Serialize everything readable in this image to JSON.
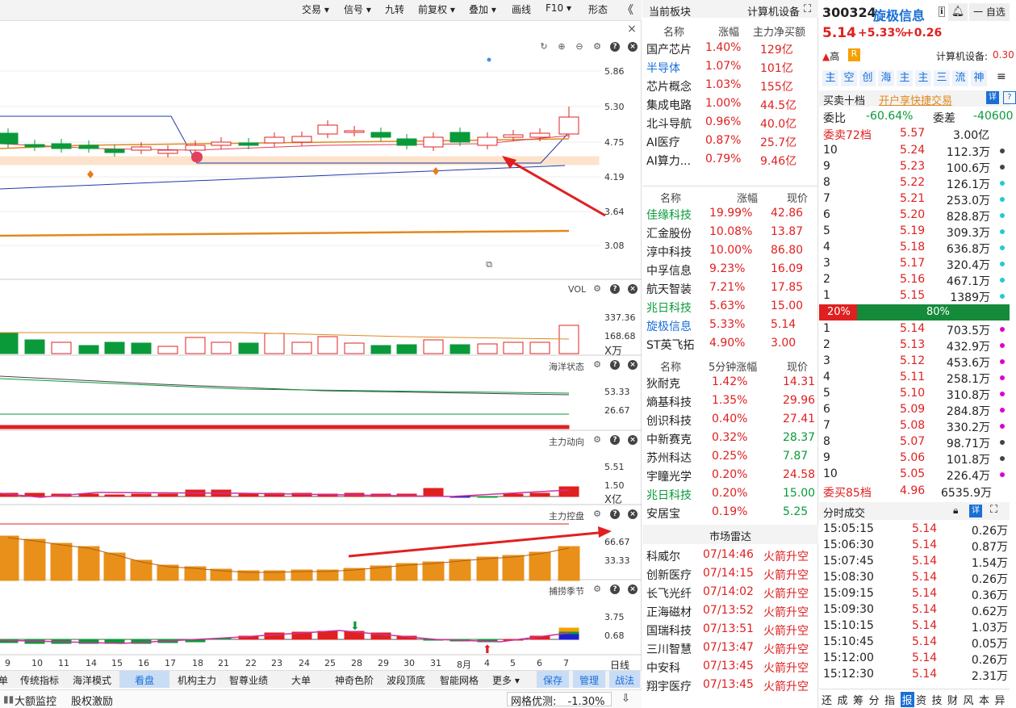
{
  "toolbar": {
    "items": [
      "交易",
      "信号",
      "九转",
      "前复权",
      "叠加",
      "画线",
      "F10",
      "形态"
    ],
    "collapse": "《"
  },
  "price_axis": [
    "5.86",
    "5.30",
    "4.75",
    "4.19",
    "3.64",
    "3.08"
  ],
  "vol": {
    "title": "VOL",
    "axis": [
      "337.36",
      "168.68"
    ],
    "unit": "X万"
  },
  "haiyang": {
    "title": "海洋状态",
    "axis": [
      "53.33",
      "26.67"
    ]
  },
  "zhuli": {
    "title": "主力动向",
    "axis": [
      "5.51",
      "1.50"
    ],
    "unit": "X亿"
  },
  "kongpan": {
    "title": "主力控盘",
    "axis": [
      "66.67",
      "33.33"
    ]
  },
  "bulao": {
    "title": "捕捞季节",
    "axis": [
      "3.75",
      "0.68"
    ]
  },
  "dates": [
    "9",
    "10",
    "11",
    "14",
    "15",
    "16",
    "17",
    "18",
    "21",
    "22",
    "23",
    "24",
    "25",
    "28",
    "29",
    "30",
    "31",
    "8月",
    "4",
    "5",
    "6",
    "7"
  ],
  "period": "日线",
  "tabs": [
    "单",
    "传统指标",
    "海洋模式",
    "看盘",
    "机构主力",
    "智尊业绩",
    "大单",
    "神奇色阶",
    "波段顶底",
    "智能网格",
    "更多",
    "保存",
    "管理",
    "战法"
  ],
  "bottom": {
    "items": [
      "大额监控",
      "股权激励"
    ],
    "grid_label": "网格优测:",
    "grid_value": "-1.30%"
  },
  "sector": {
    "title": "当前板块",
    "current": "计算机设备",
    "cols": [
      "名称",
      "涨幅",
      "主力净买额"
    ],
    "rows": [
      [
        "国产芯片",
        "1.40%",
        "129亿"
      ],
      [
        "半导体",
        "1.07%",
        "101亿"
      ],
      [
        "芯片概念",
        "1.03%",
        "155亿"
      ],
      [
        "集成电路",
        "1.00%",
        "44.5亿"
      ],
      [
        "北斗导航",
        "0.96%",
        "40.0亿"
      ],
      [
        "AI医疗",
        "0.87%",
        "25.7亿"
      ],
      [
        "AI算力...",
        "0.79%",
        "9.46亿"
      ]
    ]
  },
  "stocks": {
    "cols": [
      "名称",
      "涨幅",
      "现价"
    ],
    "rows": [
      [
        "佳缘科技",
        "19.99%",
        "42.86"
      ],
      [
        "汇金股份",
        "10.08%",
        "13.87"
      ],
      [
        "淳中科技",
        "10.00%",
        "86.80"
      ],
      [
        "中孚信息",
        "9.23%",
        "16.09"
      ],
      [
        "航天智装",
        "7.21%",
        "17.85"
      ],
      [
        "兆日科技",
        "5.63%",
        "15.00"
      ],
      [
        "旋极信息",
        "5.33%",
        "5.14"
      ],
      [
        "ST英飞拓",
        "4.90%",
        "3.00"
      ]
    ]
  },
  "fast": {
    "cols": [
      "名称",
      "5分钟涨幅",
      "现价"
    ],
    "rows": [
      [
        "狄耐克",
        "1.42%",
        "14.31"
      ],
      [
        "熵基科技",
        "1.35%",
        "29.96"
      ],
      [
        "创识科技",
        "0.40%",
        "27.41"
      ],
      [
        "中新赛克",
        "0.32%",
        "28.37"
      ],
      [
        "苏州科达",
        "0.25%",
        "7.87"
      ],
      [
        "宇瞳光学",
        "0.20%",
        "24.58"
      ],
      [
        "兆日科技",
        "0.20%",
        "15.00"
      ],
      [
        "安居宝",
        "0.19%",
        "5.25"
      ]
    ]
  },
  "radar": {
    "title": "市场雷达",
    "rows": [
      [
        "科威尔",
        "07/14:46",
        "火箭升空"
      ],
      [
        "创新医疗",
        "07/14:15",
        "火箭升空"
      ],
      [
        "长飞光纤",
        "07/14:02",
        "火箭升空"
      ],
      [
        "正海磁材",
        "07/13:52",
        "火箭升空"
      ],
      [
        "国瑞科技",
        "07/13:51",
        "火箭升空"
      ],
      [
        "三川智慧",
        "07/13:47",
        "火箭升空"
      ],
      [
        "中安科",
        "07/13:45",
        "火箭升空"
      ],
      [
        "翔宇医疗",
        "07/13:45",
        "火箭升空"
      ]
    ]
  },
  "quote": {
    "code": "300324",
    "name": "旋极信息",
    "price": "5.14",
    "pct": "+5.33%",
    "chg": "+0.26",
    "watch": "一 自选",
    "risk": "高",
    "risk2": "R",
    "industry": "计算机设备:",
    "industry_val": "0.30"
  },
  "nav": [
    "主",
    "空",
    "创",
    "海",
    "主",
    "主",
    "三",
    "流",
    "神"
  ],
  "book": {
    "title": "买卖十档",
    "fast_trade": "开户享快捷交易",
    "weibi_label": "委比",
    "weibi": "-60.64%",
    "weicha_label": "委差",
    "weicha": "-40600",
    "sell_total": [
      "委卖72档",
      "5.57",
      "3.00亿"
    ],
    "asks": [
      [
        "10",
        "5.24",
        "112.3万"
      ],
      [
        "9",
        "5.23",
        "100.6万"
      ],
      [
        "8",
        "5.22",
        "126.1万"
      ],
      [
        "7",
        "5.21",
        "253.0万"
      ],
      [
        "6",
        "5.20",
        "828.8万"
      ],
      [
        "5",
        "5.19",
        "309.3万"
      ],
      [
        "4",
        "5.18",
        "636.8万"
      ],
      [
        "3",
        "5.17",
        "320.4万"
      ],
      [
        "2",
        "5.16",
        "467.1万"
      ],
      [
        "1",
        "5.15",
        "1389万"
      ]
    ],
    "ratio_left": "20%",
    "ratio_right": "80%",
    "bids": [
      [
        "1",
        "5.14",
        "703.5万"
      ],
      [
        "2",
        "5.13",
        "432.9万"
      ],
      [
        "3",
        "5.12",
        "453.6万"
      ],
      [
        "4",
        "5.11",
        "258.1万"
      ],
      [
        "5",
        "5.10",
        "310.8万"
      ],
      [
        "6",
        "5.09",
        "284.8万"
      ],
      [
        "7",
        "5.08",
        "330.2万"
      ],
      [
        "8",
        "5.07",
        "98.71万"
      ],
      [
        "9",
        "5.06",
        "101.8万"
      ],
      [
        "10",
        "5.05",
        "226.4万"
      ]
    ],
    "buy_total": [
      "委买85档",
      "4.96",
      "6535.9万"
    ]
  },
  "trades": {
    "title": "分时成交",
    "rows": [
      [
        "15:05:15",
        "5.14",
        "0.26万"
      ],
      [
        "15:06:30",
        "5.14",
        "0.87万"
      ],
      [
        "15:07:45",
        "5.14",
        "1.54万"
      ],
      [
        "15:08:30",
        "5.14",
        "0.26万"
      ],
      [
        "15:09:15",
        "5.14",
        "0.36万"
      ],
      [
        "15:09:30",
        "5.14",
        "0.62万"
      ],
      [
        "15:10:15",
        "5.14",
        "1.03万"
      ],
      [
        "15:10:45",
        "5.14",
        "0.05万"
      ],
      [
        "15:12:00",
        "5.14",
        "0.26万"
      ],
      [
        "15:12:30",
        "5.14",
        "2.31万"
      ]
    ]
  },
  "bottom_tabs": [
    "还",
    "成",
    "筹",
    "分",
    "指",
    "报",
    "资",
    "技",
    "财",
    "风",
    "本",
    "异"
  ],
  "colors": {
    "up": "#e02020",
    "down": "#0a9a3a",
    "accent": "#1a6fd6",
    "ma": "#e08a1e"
  }
}
